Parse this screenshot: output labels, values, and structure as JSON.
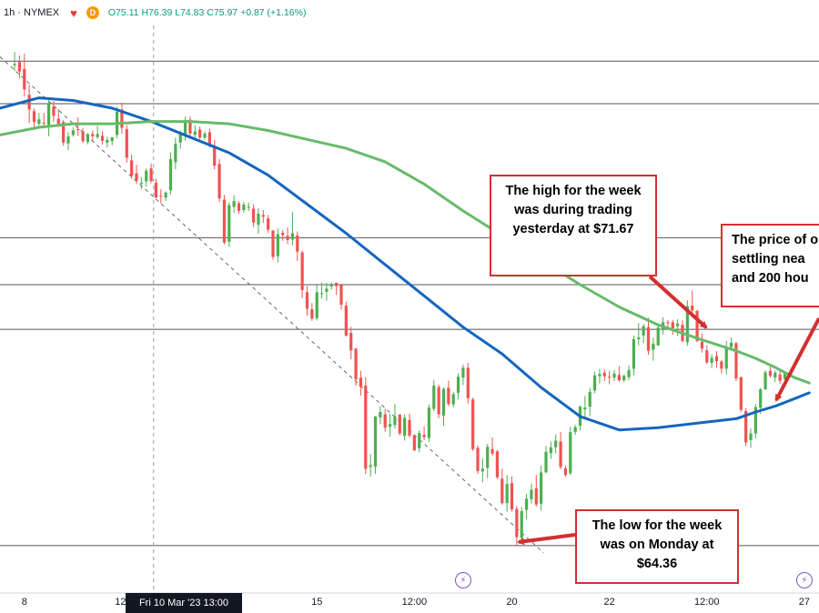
{
  "header": {
    "symbol_text": "1h · NYMEX",
    "heart_icon": "heart-icon",
    "d_badge": "D",
    "ohlc_o": "O75.11",
    "ohlc_h": "H76.39",
    "ohlc_l": "L74.83",
    "ohlc_c": "C75.97",
    "change": "+0.87 (+1.16%)"
  },
  "crosshair_label": "Fri 10 Mar '23   13:00",
  "annotations": {
    "high": "The high for the week was during trading yesterday at $71.67",
    "price": "The price of o settling nea and 200 hou",
    "low": "The low for the week was on Monday at $64.36"
  },
  "colors": {
    "up": "#4caf50",
    "down": "#ef5350",
    "ma100": "#1565c0",
    "ma200": "#66bb6a",
    "annotation": "#d32f2f"
  },
  "chart_data": {
    "type": "candlestick",
    "timeframe": "1h",
    "x_ticks": [
      {
        "label": "8",
        "x": 2
      },
      {
        "label": "12:",
        "x": 22
      },
      {
        "label": "15",
        "x": 62
      },
      {
        "label": "12:00",
        "x": 82
      },
      {
        "label": "20",
        "x": 102
      },
      {
        "label": "22",
        "x": 122
      },
      {
        "label": "12:00",
        "x": 142
      },
      {
        "label": "27",
        "x": 162
      }
    ],
    "x_range": [
      -3,
      165
    ],
    "y_range": [
      63.3,
      76.0
    ],
    "horizontal_levels": [
      75.2,
      74.25,
      71.25,
      70.2,
      69.2,
      64.36
    ],
    "ohlc": [
      [
        75.11,
        75.41,
        74.98,
        75.14
      ],
      [
        75.18,
        75.33,
        74.82,
        74.97
      ],
      [
        75.03,
        75.37,
        74.41,
        74.57
      ],
      [
        74.45,
        74.67,
        73.82,
        74.12
      ],
      [
        74.08,
        74.14,
        73.66,
        73.84
      ],
      [
        73.8,
        74.04,
        73.72,
        73.9
      ],
      [
        73.82,
        74.04,
        73.74,
        73.8
      ],
      [
        73.77,
        74.33,
        73.52,
        74.25
      ],
      [
        74.18,
        74.31,
        73.84,
        73.98
      ],
      [
        73.91,
        74.13,
        73.78,
        73.8
      ],
      [
        73.84,
        73.88,
        73.31,
        73.38
      ],
      [
        73.36,
        73.62,
        73.21,
        73.52
      ],
      [
        73.55,
        73.72,
        73.51,
        73.65
      ],
      [
        73.68,
        73.94,
        73.53,
        73.66
      ],
      [
        73.63,
        73.71,
        73.37,
        73.41
      ],
      [
        73.39,
        73.59,
        73.34,
        73.57
      ],
      [
        73.57,
        73.65,
        73.41,
        73.52
      ],
      [
        73.5,
        73.75,
        73.46,
        73.57
      ],
      [
        73.53,
        73.63,
        73.34,
        73.42
      ],
      [
        73.38,
        73.51,
        73.27,
        73.44
      ],
      [
        73.41,
        73.5,
        73.32,
        73.5
      ],
      [
        73.55,
        74.18,
        73.47,
        74.07
      ],
      [
        74.12,
        74.27,
        73.58,
        73.71
      ],
      [
        73.68,
        73.77,
        72.93,
        73.04
      ],
      [
        72.98,
        73.11,
        72.57,
        72.64
      ],
      [
        72.69,
        72.88,
        72.45,
        72.53
      ],
      [
        72.48,
        72.61,
        72.34,
        72.48
      ],
      [
        72.51,
        72.8,
        72.4,
        72.75
      ],
      [
        72.8,
        72.91,
        72.47,
        72.52
      ],
      [
        72.48,
        72.57,
        72.13,
        72.15
      ],
      [
        72.19,
        72.34,
        72.02,
        72.18
      ],
      [
        72.15,
        72.29,
        72.07,
        72.26
      ],
      [
        72.31,
        73.16,
        72.22,
        73.01
      ],
      [
        72.94,
        73.49,
        72.78,
        73.35
      ],
      [
        73.38,
        73.65,
        73.24,
        73.59
      ],
      [
        73.55,
        73.96,
        73.42,
        73.88
      ],
      [
        73.89,
        73.96,
        73.51,
        73.58
      ],
      [
        73.55,
        73.77,
        73.46,
        73.63
      ],
      [
        73.67,
        73.74,
        73.46,
        73.49
      ],
      [
        73.49,
        73.63,
        73.44,
        73.58
      ],
      [
        73.61,
        73.69,
        73.27,
        73.33
      ],
      [
        73.27,
        73.44,
        72.78,
        72.86
      ],
      [
        72.9,
        73.01,
        72.05,
        72.13
      ],
      [
        72.1,
        72.21,
        71.1,
        71.14
      ],
      [
        71.16,
        72.04,
        71.04,
        71.98
      ],
      [
        71.94,
        72.2,
        71.81,
        72.07
      ],
      [
        72.02,
        72.07,
        71.78,
        71.85
      ],
      [
        71.87,
        72.05,
        71.81,
        71.99
      ],
      [
        71.94,
        72.04,
        71.85,
        71.94
      ],
      [
        71.9,
        72.0,
        71.49,
        71.59
      ],
      [
        71.54,
        71.91,
        71.34,
        71.79
      ],
      [
        71.76,
        71.87,
        71.58,
        71.72
      ],
      [
        71.68,
        71.76,
        71.36,
        71.43
      ],
      [
        71.41,
        71.42,
        70.76,
        70.82
      ],
      [
        70.84,
        71.46,
        70.7,
        71.33
      ],
      [
        71.36,
        71.42,
        71.18,
        71.31
      ],
      [
        71.29,
        71.48,
        71.11,
        71.2
      ],
      [
        71.21,
        71.83,
        71.08,
        71.35
      ],
      [
        71.3,
        71.39,
        70.73,
        70.94
      ],
      [
        70.92,
        70.96,
        69.9,
        70.08
      ],
      [
        70.03,
        70.17,
        69.5,
        69.66
      ],
      [
        69.65,
        69.79,
        69.39,
        69.44
      ],
      [
        69.45,
        70.19,
        69.4,
        70.03
      ],
      [
        70.0,
        70.25,
        69.89,
        70.01
      ],
      [
        70.04,
        70.24,
        69.84,
        70.11
      ],
      [
        70.16,
        70.25,
        70.09,
        70.2
      ],
      [
        70.24,
        70.25,
        69.97,
        70.17
      ],
      [
        70.19,
        70.22,
        69.64,
        69.75
      ],
      [
        69.73,
        69.82,
        69.04,
        69.06
      ],
      [
        69.12,
        69.26,
        68.53,
        68.73
      ],
      [
        68.77,
        68.78,
        67.94,
        68.08
      ],
      [
        68.12,
        68.27,
        67.72,
        67.91
      ],
      [
        67.94,
        68.13,
        65.96,
        66.08
      ],
      [
        66.12,
        66.41,
        65.9,
        66.16
      ],
      [
        66.13,
        67.26,
        65.97,
        67.25
      ],
      [
        67.23,
        67.48,
        67.08,
        67.35
      ],
      [
        67.3,
        67.42,
        66.91,
        67.0
      ],
      [
        67.02,
        67.31,
        66.8,
        67.08
      ],
      [
        67.06,
        67.53,
        66.98,
        67.25
      ],
      [
        67.29,
        67.31,
        66.82,
        66.87
      ],
      [
        66.82,
        67.3,
        66.71,
        67.22
      ],
      [
        67.17,
        67.31,
        66.78,
        66.82
      ],
      [
        66.83,
        66.84,
        66.48,
        66.49
      ],
      [
        66.54,
        66.94,
        66.45,
        66.88
      ],
      [
        66.84,
        67.03,
        66.72,
        66.79
      ],
      [
        66.77,
        67.52,
        66.68,
        67.45
      ],
      [
        67.42,
        68.06,
        67.37,
        67.94
      ],
      [
        67.91,
        67.96,
        67.21,
        67.3
      ],
      [
        67.27,
        67.9,
        67.04,
        67.87
      ],
      [
        67.89,
        68.05,
        67.48,
        67.53
      ],
      [
        67.52,
        67.8,
        67.45,
        67.75
      ],
      [
        67.78,
        68.22,
        67.63,
        68.14
      ],
      [
        68.12,
        68.41,
        67.95,
        68.34
      ],
      [
        68.34,
        68.45,
        67.54,
        67.66
      ],
      [
        67.63,
        67.67,
        66.48,
        66.52
      ],
      [
        66.55,
        66.6,
        65.96,
        66.03
      ],
      [
        66.02,
        66.31,
        65.78,
        66.08
      ],
      [
        66.1,
        66.64,
        65.87,
        66.57
      ],
      [
        66.52,
        66.78,
        66.37,
        66.42
      ],
      [
        66.47,
        66.5,
        65.85,
        65.89
      ],
      [
        65.86,
        66.08,
        65.28,
        65.31
      ],
      [
        65.31,
        65.94,
        65.12,
        65.74
      ],
      [
        65.76,
        65.91,
        65.12,
        65.17
      ],
      [
        65.18,
        65.25,
        64.36,
        64.55
      ],
      [
        64.53,
        65.22,
        64.48,
        65.13
      ],
      [
        65.16,
        65.52,
        64.94,
        65.41
      ],
      [
        65.4,
        65.75,
        65.3,
        65.61
      ],
      [
        65.64,
        65.94,
        65.23,
        65.28
      ],
      [
        65.3,
        66.15,
        65.14,
        66.0
      ],
      [
        66.0,
        66.59,
        65.98,
        66.46
      ],
      [
        66.43,
        66.69,
        66.3,
        66.56
      ],
      [
        66.56,
        66.85,
        66.42,
        66.71
      ],
      [
        66.69,
        66.9,
        66.07,
        66.12
      ],
      [
        66.09,
        66.15,
        65.9,
        65.94
      ],
      [
        65.98,
        67.02,
        65.94,
        66.9
      ],
      [
        66.9,
        67.06,
        66.84,
        67.01
      ],
      [
        67.04,
        67.49,
        66.94,
        67.47
      ],
      [
        67.41,
        67.71,
        67.2,
        67.45
      ],
      [
        67.47,
        67.89,
        67.26,
        67.8
      ],
      [
        67.83,
        68.25,
        67.77,
        68.17
      ],
      [
        68.15,
        68.31,
        67.99,
        68.2
      ],
      [
        68.23,
        68.3,
        68.04,
        68.15
      ],
      [
        68.14,
        68.27,
        67.97,
        68.12
      ],
      [
        68.12,
        68.29,
        68.04,
        68.21
      ],
      [
        68.18,
        68.38,
        68.03,
        68.06
      ],
      [
        68.06,
        68.19,
        68.02,
        68.16
      ],
      [
        68.13,
        68.39,
        68.06,
        68.29
      ],
      [
        68.32,
        69.06,
        68.17,
        68.98
      ],
      [
        68.98,
        69.34,
        68.84,
        69.02
      ],
      [
        69.06,
        69.32,
        68.89,
        69.27
      ],
      [
        69.25,
        69.46,
        68.63,
        68.72
      ],
      [
        68.74,
        69.01,
        68.5,
        68.88
      ],
      [
        68.84,
        69.31,
        68.83,
        69.24
      ],
      [
        69.2,
        69.47,
        69.09,
        69.36
      ],
      [
        69.36,
        69.41,
        69.21,
        69.35
      ],
      [
        69.36,
        69.41,
        69.08,
        69.22
      ],
      [
        69.27,
        69.43,
        69.05,
        69.33
      ],
      [
        69.3,
        69.4,
        68.91,
        68.94
      ],
      [
        68.91,
        69.85,
        68.83,
        69.72
      ],
      [
        69.73,
        70.07,
        69.55,
        69.62
      ],
      [
        69.61,
        69.64,
        68.91,
        68.94
      ],
      [
        68.92,
        69.11,
        68.68,
        68.77
      ],
      [
        68.73,
        68.85,
        68.42,
        68.46
      ],
      [
        68.45,
        68.64,
        68.33,
        68.56
      ],
      [
        68.6,
        68.71,
        68.34,
        68.49
      ],
      [
        68.48,
        68.51,
        68.21,
        68.32
      ],
      [
        68.32,
        68.94,
        68.19,
        68.81
      ],
      [
        68.8,
        69.02,
        68.74,
        68.9
      ],
      [
        68.89,
        68.92,
        68.04,
        68.1
      ],
      [
        68.13,
        68.14,
        67.35,
        67.4
      ],
      [
        67.37,
        67.44,
        66.59,
        66.67
      ],
      [
        66.72,
        66.98,
        66.55,
        66.87
      ],
      [
        66.87,
        67.53,
        66.76,
        67.46
      ],
      [
        67.44,
        67.89,
        67.31,
        67.86
      ],
      [
        67.86,
        68.28,
        67.84,
        68.24
      ],
      [
        68.27,
        68.39,
        68.12,
        68.16
      ],
      [
        68.12,
        68.28,
        68.02,
        68.23
      ],
      [
        68.19,
        68.31,
        67.98,
        68.05
      ],
      [
        68.09,
        68.26,
        68.06,
        68.21
      ]
    ],
    "series": [
      {
        "name": "100 hour MA",
        "x": [
          -3,
          5,
          12,
          20,
          28,
          36,
          44,
          52,
          60,
          68,
          76,
          84,
          92,
          100,
          108,
          116,
          124,
          132,
          140,
          148,
          152,
          156,
          160,
          163
        ],
        "y": [
          74.15,
          74.38,
          74.32,
          74.15,
          73.85,
          73.5,
          73.15,
          72.65,
          72.0,
          71.35,
          70.65,
          69.95,
          69.25,
          68.65,
          67.9,
          67.25,
          66.95,
          67.0,
          67.1,
          67.2,
          67.35,
          67.48,
          67.65,
          67.78
        ]
      },
      {
        "name": "200 hour MA",
        "x": [
          -3,
          5,
          12,
          20,
          28,
          36,
          44,
          52,
          60,
          68,
          76,
          84,
          92,
          100,
          108,
          116,
          124,
          132,
          140,
          148,
          152,
          156,
          160,
          163
        ],
        "y": [
          73.55,
          73.72,
          73.8,
          73.8,
          73.85,
          73.85,
          73.8,
          73.65,
          73.45,
          73.25,
          72.95,
          72.45,
          71.85,
          71.3,
          70.75,
          70.2,
          69.7,
          69.3,
          69.0,
          68.72,
          68.55,
          68.35,
          68.12,
          68.0
        ]
      }
    ],
    "trendline": {
      "x": [
        -3,
        108.5
      ],
      "y": [
        75.3,
        64.2
      ]
    },
    "crosshair_x": 28.5,
    "events": [
      {
        "x": 92
      },
      {
        "x": 162
      }
    ]
  }
}
